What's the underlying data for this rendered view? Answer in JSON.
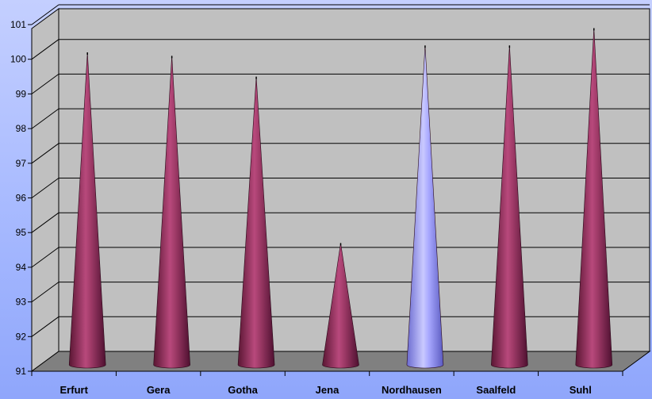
{
  "chart_data": {
    "type": "bar",
    "style": "3d-cone",
    "categories": [
      "Erfurt",
      "Gera",
      "Gotha",
      "Jena",
      "Nordhausen",
      "Saalfeld",
      "Suhl"
    ],
    "values": [
      99.9,
      99.8,
      99.2,
      94.4,
      100.1,
      100.1,
      100.6
    ],
    "ylim": [
      91,
      101
    ],
    "yticks": [
      "91",
      "92",
      "93",
      "94",
      "95",
      "96",
      "97",
      "98",
      "99",
      "100",
      "101"
    ],
    "grid": true,
    "legend": "none",
    "colors": {
      "default_series": "#993366",
      "highlight": "#9999ff",
      "highlight_category": "Nordhausen",
      "wall": "#c0c0c0",
      "floor": "#808080"
    }
  }
}
